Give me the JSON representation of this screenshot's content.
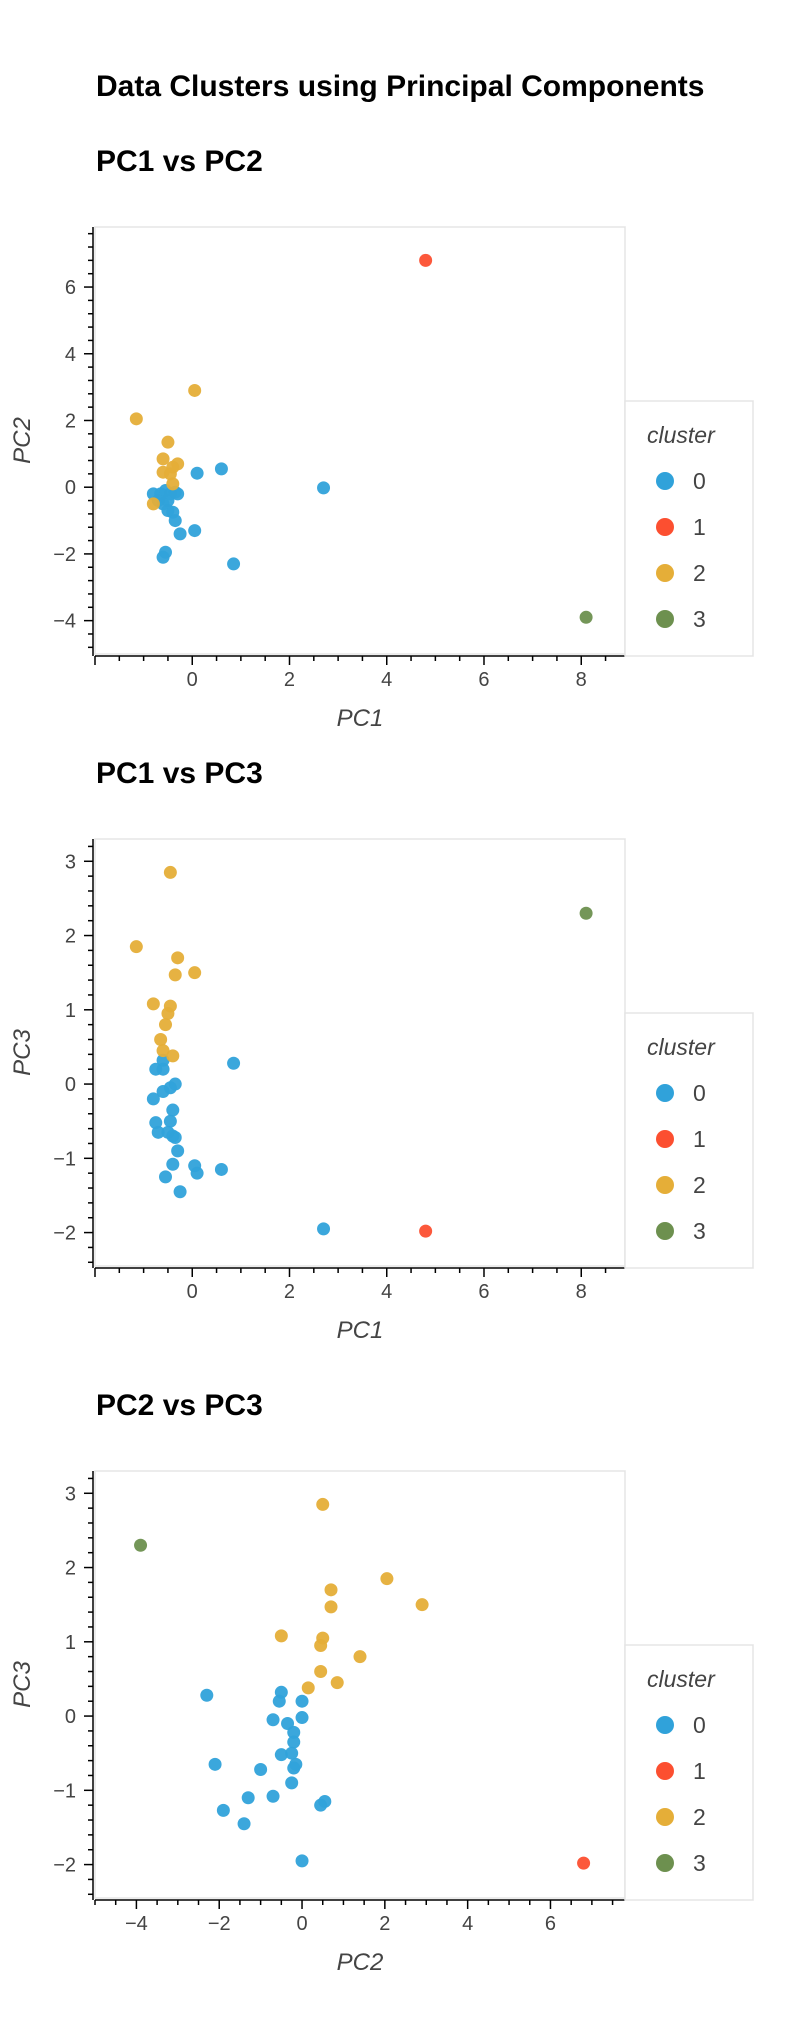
{
  "page_title": "Data Clusters using Principal Components",
  "legend_title": "cluster",
  "legend_items": [
    {
      "label": "0",
      "color": "#30a2da"
    },
    {
      "label": "1",
      "color": "#fc4f30"
    },
    {
      "label": "2",
      "color": "#e5ae38"
    },
    {
      "label": "3",
      "color": "#6d904f"
    }
  ],
  "chart_data": [
    {
      "type": "scatter",
      "title": "PC1 vs PC2",
      "xlabel": "PC1",
      "ylabel": "PC2",
      "xlim": [
        -2.0,
        8.9
      ],
      "ylim": [
        -5.0,
        7.8
      ],
      "xticks": [
        0,
        2,
        4,
        6,
        8
      ],
      "yticks": [
        -4,
        -2,
        0,
        2,
        4,
        6
      ],
      "grid": false,
      "legend_position": "right",
      "series": [
        {
          "name": "0",
          "points": [
            [
              0.6,
              0.55
            ],
            [
              0.1,
              0.42
            ],
            [
              2.7,
              -0.02
            ],
            [
              -0.55,
              -0.1
            ],
            [
              -0.45,
              -0.2
            ],
            [
              -0.35,
              -0.15
            ],
            [
              -0.3,
              -0.2
            ],
            [
              -0.8,
              -0.2
            ],
            [
              -0.7,
              -0.4
            ],
            [
              -0.6,
              -0.5
            ],
            [
              -0.5,
              -0.7
            ],
            [
              -0.4,
              -0.75
            ],
            [
              -0.35,
              -1.0
            ],
            [
              -0.25,
              -1.4
            ],
            [
              0.05,
              -1.3
            ],
            [
              0.85,
              -2.3
            ],
            [
              -0.55,
              -1.95
            ],
            [
              -0.6,
              -2.1
            ],
            [
              -0.65,
              -0.2
            ],
            [
              -0.5,
              -0.4
            ]
          ]
        },
        {
          "name": "1",
          "points": [
            [
              4.8,
              6.8
            ]
          ]
        },
        {
          "name": "2",
          "points": [
            [
              0.05,
              2.9
            ],
            [
              -1.15,
              2.05
            ],
            [
              -0.5,
              1.35
            ],
            [
              -0.6,
              0.85
            ],
            [
              -0.3,
              0.7
            ],
            [
              -0.4,
              0.6
            ],
            [
              -0.6,
              0.45
            ],
            [
              -0.45,
              0.4
            ],
            [
              -0.4,
              0.1
            ],
            [
              -0.8,
              -0.5
            ]
          ]
        },
        {
          "name": "3",
          "points": [
            [
              8.1,
              -3.9
            ]
          ]
        }
      ]
    },
    {
      "type": "scatter",
      "title": "PC1 vs PC3",
      "xlabel": "PC1",
      "ylabel": "PC3",
      "xlim": [
        -2.0,
        8.9
      ],
      "ylim": [
        -2.45,
        3.3
      ],
      "xticks": [
        0,
        2,
        4,
        6,
        8
      ],
      "yticks": [
        -2,
        -1,
        0,
        1,
        2,
        3
      ],
      "grid": false,
      "legend_position": "right",
      "series": [
        {
          "name": "0",
          "points": [
            [
              0.85,
              0.28
            ],
            [
              -0.6,
              0.32
            ],
            [
              -0.75,
              0.2
            ],
            [
              -0.6,
              0.2
            ],
            [
              -0.35,
              0.0
            ],
            [
              -0.45,
              -0.05
            ],
            [
              -0.6,
              -0.1
            ],
            [
              -0.8,
              -0.2
            ],
            [
              -0.4,
              -0.35
            ],
            [
              -0.75,
              -0.52
            ],
            [
              -0.45,
              -0.5
            ],
            [
              -0.7,
              -0.65
            ],
            [
              -0.5,
              -0.65
            ],
            [
              -0.4,
              -0.7
            ],
            [
              -0.35,
              -0.72
            ],
            [
              -0.3,
              -0.9
            ],
            [
              -0.4,
              -1.08
            ],
            [
              0.05,
              -1.1
            ],
            [
              0.1,
              -1.2
            ],
            [
              0.6,
              -1.15
            ],
            [
              -0.55,
              -1.25
            ],
            [
              -0.25,
              -1.45
            ],
            [
              2.7,
              -1.95
            ]
          ]
        },
        {
          "name": "1",
          "points": [
            [
              4.8,
              -1.98
            ]
          ]
        },
        {
          "name": "2",
          "points": [
            [
              -0.45,
              2.85
            ],
            [
              -1.15,
              1.85
            ],
            [
              -0.3,
              1.7
            ],
            [
              0.05,
              1.5
            ],
            [
              -0.35,
              1.47
            ],
            [
              -0.8,
              1.08
            ],
            [
              -0.45,
              1.05
            ],
            [
              -0.5,
              0.95
            ],
            [
              -0.55,
              0.8
            ],
            [
              -0.65,
              0.6
            ],
            [
              -0.6,
              0.45
            ],
            [
              -0.4,
              0.38
            ]
          ]
        },
        {
          "name": "3",
          "points": [
            [
              8.1,
              2.3
            ]
          ]
        }
      ]
    },
    {
      "type": "scatter",
      "title": "PC2 vs PC3",
      "xlabel": "PC2",
      "ylabel": "PC3",
      "xlim": [
        -5.0,
        7.8
      ],
      "ylim": [
        -2.45,
        3.3
      ],
      "xticks": [
        -4,
        -2,
        0,
        2,
        4,
        6
      ],
      "yticks": [
        -2,
        -1,
        0,
        1,
        2,
        3
      ],
      "grid": false,
      "legend_position": "right",
      "series": [
        {
          "name": "0",
          "points": [
            [
              -2.3,
              0.28
            ],
            [
              -0.5,
              0.32
            ],
            [
              -0.55,
              0.2
            ],
            [
              0.0,
              0.2
            ],
            [
              -0.7,
              -0.05
            ],
            [
              -0.35,
              -0.1
            ],
            [
              0.0,
              -0.02
            ],
            [
              -0.2,
              -0.22
            ],
            [
              -0.2,
              -0.35
            ],
            [
              -0.5,
              -0.52
            ],
            [
              -0.25,
              -0.5
            ],
            [
              -0.15,
              -0.65
            ],
            [
              -0.2,
              -0.7
            ],
            [
              -1.0,
              -0.72
            ],
            [
              -2.1,
              -0.65
            ],
            [
              -0.25,
              -0.9
            ],
            [
              -1.3,
              -1.1
            ],
            [
              -0.7,
              -1.08
            ],
            [
              0.45,
              -1.2
            ],
            [
              0.55,
              -1.15
            ],
            [
              -1.9,
              -1.27
            ],
            [
              -1.4,
              -1.45
            ],
            [
              0.0,
              -1.95
            ]
          ]
        },
        {
          "name": "1",
          "points": [
            [
              6.8,
              -1.98
            ]
          ]
        },
        {
          "name": "2",
          "points": [
            [
              0.5,
              2.85
            ],
            [
              0.7,
              1.7
            ],
            [
              2.05,
              1.85
            ],
            [
              2.9,
              1.5
            ],
            [
              0.7,
              1.47
            ],
            [
              -0.5,
              1.08
            ],
            [
              0.5,
              1.05
            ],
            [
              0.45,
              0.95
            ],
            [
              1.4,
              0.8
            ],
            [
              0.45,
              0.6
            ],
            [
              0.85,
              0.45
            ],
            [
              0.15,
              0.38
            ]
          ]
        },
        {
          "name": "3",
          "points": [
            [
              -3.9,
              2.3
            ]
          ]
        }
      ]
    }
  ]
}
